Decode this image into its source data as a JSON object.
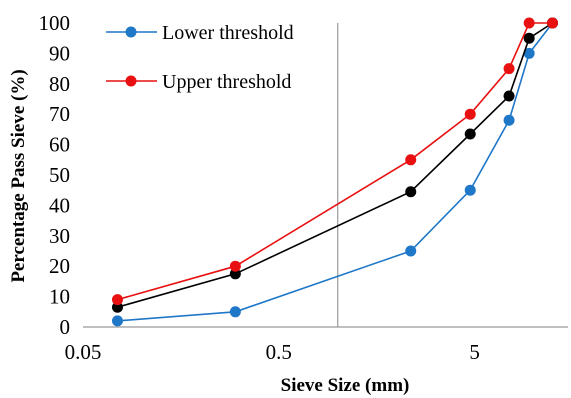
{
  "chart_data": {
    "type": "line",
    "xscale": "log",
    "xlim": [
      0.05,
      15
    ],
    "ylim": [
      0,
      100
    ],
    "xticks": [
      0.05,
      0.5,
      5
    ],
    "xtick_labels": [
      "0.05",
      "0.5",
      "5"
    ],
    "yticks": [
      0,
      10,
      20,
      30,
      40,
      50,
      60,
      70,
      80,
      90,
      100
    ],
    "ytick_labels": [
      "0",
      "10",
      "20",
      "30",
      "40",
      "50",
      "60",
      "70",
      "80",
      "90",
      "100"
    ],
    "xlabel": "Sieve Size (mm)",
    "ylabel": "Percentage Pass Sieve (%)",
    "legend_position": "top-left",
    "x": [
      0.075,
      0.3,
      2.36,
      4.75,
      7.5,
      9.5,
      12.5
    ],
    "series": [
      {
        "name": "Lower threshold",
        "color": "#1f77c8",
        "values": [
          2,
          5,
          25,
          45,
          68,
          90,
          100
        ]
      },
      {
        "name": "Upper threshold",
        "color": "#e81010",
        "values": [
          9,
          20,
          55,
          70,
          85,
          100,
          100
        ]
      },
      {
        "name": "",
        "color": "#000000",
        "values": [
          6.5,
          17.5,
          44.5,
          63.5,
          76,
          95,
          100
        ]
      }
    ]
  }
}
